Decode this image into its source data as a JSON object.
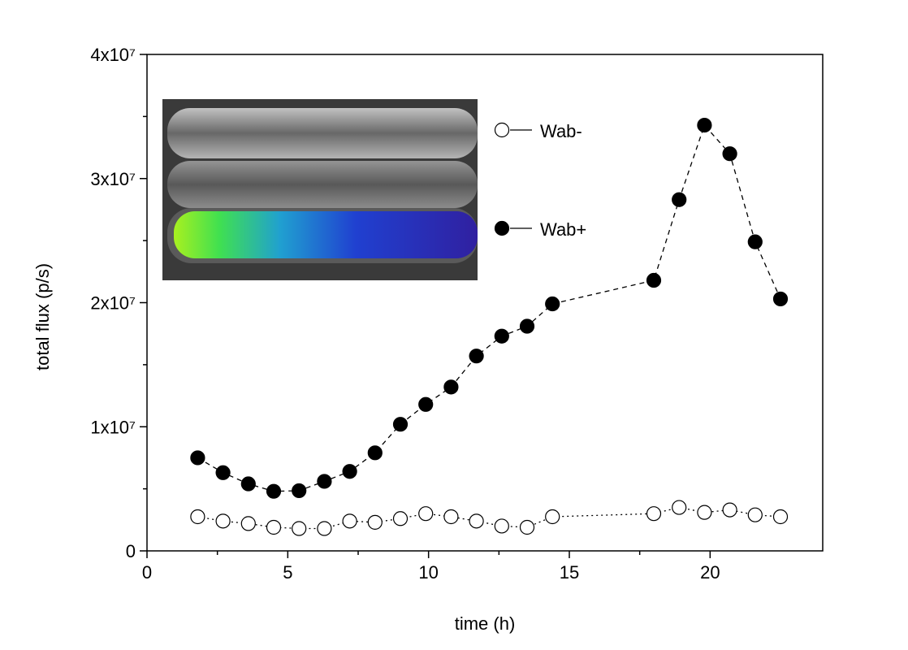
{
  "chart_data": {
    "type": "line",
    "xlabel": "time (h)",
    "ylabel": "total flux (p/s)",
    "xlim": [
      0,
      24
    ],
    "xticks": [
      0,
      5,
      10,
      15,
      20
    ],
    "ylim": [
      0,
      40000000
    ],
    "yticks": [
      0,
      {
        "value": 10000000,
        "label": "1x10⁷"
      },
      {
        "value": 20000000,
        "label": "2x10⁷"
      },
      {
        "value": 30000000,
        "label": "3x10⁷"
      },
      {
        "value": 40000000,
        "label": "4x10⁷"
      }
    ],
    "x": [
      1.8,
      2.7,
      3.6,
      4.5,
      5.4,
      6.3,
      7.2,
      8.1,
      9.0,
      9.9,
      10.8,
      11.7,
      12.6,
      13.5,
      14.4,
      18.0,
      18.9,
      19.8,
      20.7,
      21.6,
      22.5
    ],
    "series": [
      {
        "name": "Wab-",
        "color": "#000000",
        "marker": "open",
        "linestyle": "dotted",
        "values": [
          2750000,
          2400000,
          2200000,
          1900000,
          1800000,
          1800000,
          2400000,
          2300000,
          2600000,
          3000000,
          2750000,
          2400000,
          2000000,
          1900000,
          2750000,
          3000000,
          3500000,
          3100000,
          3300000,
          2900000,
          2750000
        ]
      },
      {
        "name": "Wab+",
        "color": "#000000",
        "marker": "filled",
        "linestyle": "dashed",
        "values": [
          7500000,
          6300000,
          5400000,
          4800000,
          4850000,
          5600000,
          6400000,
          7900000,
          10200000,
          11800000,
          13200000,
          15700000,
          17300000,
          18100000,
          19900000,
          21800000,
          28300000,
          34300000,
          32000000,
          24900000,
          20300000
        ]
      }
    ]
  }
}
